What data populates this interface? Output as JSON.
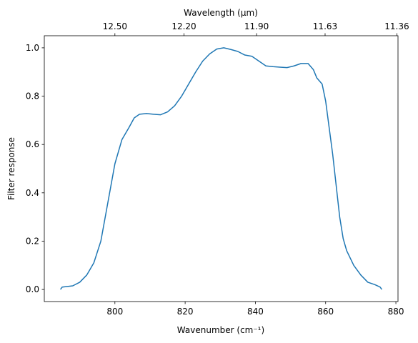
{
  "chart_data": {
    "type": "line",
    "x_label": "Wavenumber (cm⁻¹)",
    "x2_label": "Wavelength (μm)",
    "y_label": "Filter response",
    "x2_scale": "reciprocal",
    "series": [
      {
        "color": "#1f77b4",
        "x": [
          784.5,
          785,
          788,
          790,
          792,
          794,
          796,
          798,
          800,
          802,
          804,
          805.5,
          807,
          809,
          811,
          813,
          815,
          817,
          819,
          821,
          823,
          825,
          827,
          829,
          831,
          833,
          835,
          837,
          839,
          841,
          843,
          845,
          847,
          849,
          851,
          853,
          855,
          856.5,
          857.5,
          859,
          860,
          861,
          862,
          863,
          864,
          865,
          866,
          868,
          870,
          872,
          874,
          875.5,
          876
        ],
        "values": [
          0.0,
          0.01,
          0.015,
          0.03,
          0.06,
          0.11,
          0.2,
          0.36,
          0.52,
          0.62,
          0.67,
          0.71,
          0.725,
          0.728,
          0.725,
          0.723,
          0.735,
          0.76,
          0.8,
          0.85,
          0.9,
          0.945,
          0.975,
          0.995,
          1.0,
          0.993,
          0.985,
          0.97,
          0.965,
          0.945,
          0.925,
          0.922,
          0.92,
          0.918,
          0.925,
          0.935,
          0.935,
          0.91,
          0.875,
          0.85,
          0.78,
          0.67,
          0.56,
          0.43,
          0.3,
          0.21,
          0.16,
          0.1,
          0.06,
          0.03,
          0.02,
          0.01,
          0.0
        ]
      }
    ],
    "xlim": [
      779.9,
      880.6
    ],
    "xticks": [
      800,
      820,
      840,
      860,
      880
    ],
    "x2ticks": [
      {
        "value": 12.5,
        "label": "12.50"
      },
      {
        "value": 12.2,
        "label": "12.20"
      },
      {
        "value": 11.9,
        "label": "11.90"
      },
      {
        "value": 11.63,
        "label": "11.63"
      },
      {
        "value": 11.36,
        "label": "11.36"
      }
    ],
    "ylim": [
      -0.05,
      1.05
    ],
    "yticks": [
      {
        "value": 0,
        "label": "0.0"
      },
      {
        "value": 0.2,
        "label": "0.2"
      },
      {
        "value": 0.4,
        "label": "0.4"
      },
      {
        "value": 0.6,
        "label": "0.6"
      },
      {
        "value": 0.8,
        "label": "0.8"
      },
      {
        "value": 1,
        "label": "1.0"
      }
    ],
    "grid": false
  }
}
